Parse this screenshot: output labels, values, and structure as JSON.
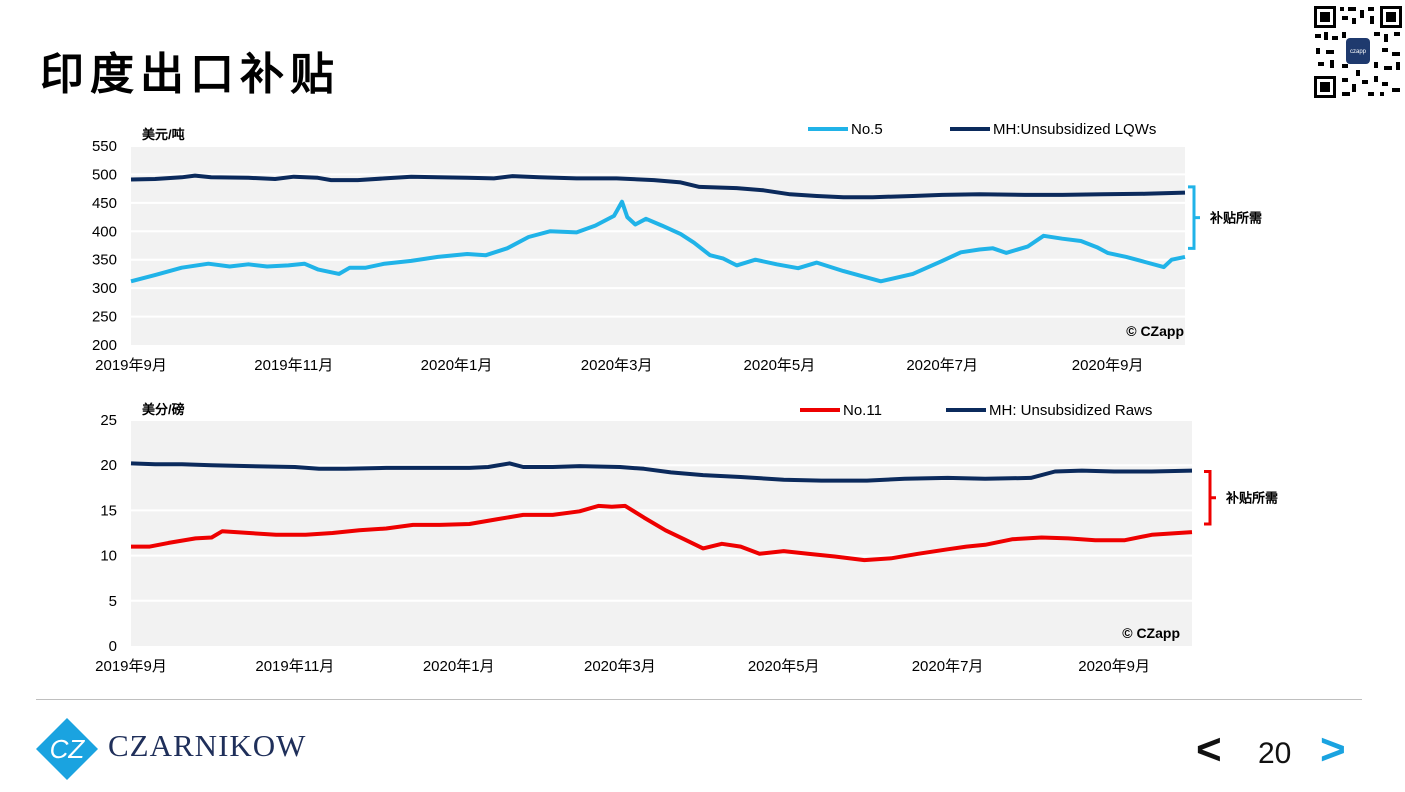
{
  "page": {
    "title": "印度出口补贴",
    "page_number": "20",
    "prev_symbol": "<",
    "next_symbol": ">",
    "brand": "CZARNIKOW",
    "logo_monogram": "CZ"
  },
  "colors": {
    "navy": "#0b2a5c",
    "light_blue": "#20b3e8",
    "red": "#ee0000",
    "plot_bg": "#f2f2f2",
    "brand_blue": "#1aa3e0"
  },
  "chart_data": [
    {
      "type": "line",
      "unit_label": "美元/吨",
      "ylim": [
        200,
        550
      ],
      "yticks": [
        "200",
        "250",
        "300",
        "350",
        "400",
        "450",
        "500",
        "550"
      ],
      "xlim": [
        "2019-09-01",
        "2020-09-30"
      ],
      "xticks": [
        {
          "date": "2019-09-01",
          "label": "2019年9月"
        },
        {
          "date": "2019-11-01",
          "label": "2019年11月"
        },
        {
          "date": "2020-01-01",
          "label": "2020年1月"
        },
        {
          "date": "2020-03-01",
          "label": "2020年3月"
        },
        {
          "date": "2020-05-01",
          "label": "2020年5月"
        },
        {
          "date": "2020-07-01",
          "label": "2020年7月"
        },
        {
          "date": "2020-09-01",
          "label": "2020年9月"
        }
      ],
      "grid": true,
      "legend_position": "top-right",
      "watermark": "© CZapp",
      "bracket_label": "补贴所需",
      "bracket_range": [
        370,
        478
      ],
      "series": [
        {
          "name": "No.5",
          "color": "#20b3e8",
          "points": [
            [
              "2019-09-01",
              312
            ],
            [
              "2019-09-10",
              323
            ],
            [
              "2019-09-20",
              336
            ],
            [
              "2019-09-30",
              343
            ],
            [
              "2019-10-08",
              338
            ],
            [
              "2019-10-15",
              342
            ],
            [
              "2019-10-22",
              338
            ],
            [
              "2019-10-30",
              340
            ],
            [
              "2019-11-05",
              343
            ],
            [
              "2019-11-10",
              333
            ],
            [
              "2019-11-18",
              325
            ],
            [
              "2019-11-22",
              336
            ],
            [
              "2019-11-28",
              336
            ],
            [
              "2019-12-05",
              343
            ],
            [
              "2019-12-15",
              348
            ],
            [
              "2019-12-25",
              355
            ],
            [
              "2020-01-05",
              360
            ],
            [
              "2020-01-12",
              358
            ],
            [
              "2020-01-20",
              370
            ],
            [
              "2020-01-28",
              390
            ],
            [
              "2020-02-05",
              400
            ],
            [
              "2020-02-15",
              398
            ],
            [
              "2020-02-22",
              410
            ],
            [
              "2020-02-29",
              427
            ],
            [
              "2020-03-01",
              435
            ],
            [
              "2020-03-03",
              452
            ],
            [
              "2020-03-05",
              425
            ],
            [
              "2020-03-08",
              412
            ],
            [
              "2020-03-12",
              422
            ],
            [
              "2020-03-18",
              410
            ],
            [
              "2020-03-25",
              395
            ],
            [
              "2020-03-30",
              380
            ],
            [
              "2020-04-05",
              358
            ],
            [
              "2020-04-10",
              352
            ],
            [
              "2020-04-15",
              340
            ],
            [
              "2020-04-22",
              350
            ],
            [
              "2020-04-30",
              342
            ],
            [
              "2020-05-08",
              335
            ],
            [
              "2020-05-15",
              345
            ],
            [
              "2020-05-25",
              330
            ],
            [
              "2020-06-08",
              312
            ],
            [
              "2020-06-20",
              325
            ],
            [
              "2020-07-01",
              348
            ],
            [
              "2020-07-08",
              363
            ],
            [
              "2020-07-15",
              368
            ],
            [
              "2020-07-20",
              370
            ],
            [
              "2020-07-25",
              362
            ],
            [
              "2020-08-02",
              373
            ],
            [
              "2020-08-08",
              392
            ],
            [
              "2020-08-15",
              387
            ],
            [
              "2020-08-22",
              383
            ],
            [
              "2020-08-28",
              372
            ],
            [
              "2020-09-01",
              362
            ],
            [
              "2020-09-08",
              355
            ],
            [
              "2020-09-15",
              346
            ],
            [
              "2020-09-22",
              337
            ],
            [
              "2020-09-25",
              350
            ],
            [
              "2020-09-30",
              355
            ]
          ]
        },
        {
          "name": "MH:Unsubsidized LQWs",
          "color": "#0b2a5c",
          "points": [
            [
              "2019-09-01",
              491
            ],
            [
              "2019-09-10",
              492
            ],
            [
              "2019-09-20",
              495
            ],
            [
              "2019-09-25",
              498
            ],
            [
              "2019-10-01",
              495
            ],
            [
              "2019-10-15",
              494
            ],
            [
              "2019-10-25",
              492
            ],
            [
              "2019-11-01",
              496
            ],
            [
              "2019-11-10",
              494
            ],
            [
              "2019-11-15",
              490
            ],
            [
              "2019-11-25",
              490
            ],
            [
              "2019-12-05",
              493
            ],
            [
              "2019-12-15",
              496
            ],
            [
              "2019-12-25",
              495
            ],
            [
              "2020-01-05",
              494
            ],
            [
              "2020-01-15",
              493
            ],
            [
              "2020-01-22",
              497
            ],
            [
              "2020-02-01",
              495
            ],
            [
              "2020-02-15",
              493
            ],
            [
              "2020-03-01",
              493
            ],
            [
              "2020-03-15",
              490
            ],
            [
              "2020-03-25",
              486
            ],
            [
              "2020-04-01",
              478
            ],
            [
              "2020-04-15",
              476
            ],
            [
              "2020-04-25",
              472
            ],
            [
              "2020-05-05",
              465
            ],
            [
              "2020-05-15",
              462
            ],
            [
              "2020-05-25",
              460
            ],
            [
              "2020-06-05",
              460
            ],
            [
              "2020-06-20",
              462
            ],
            [
              "2020-07-01",
              464
            ],
            [
              "2020-07-15",
              465
            ],
            [
              "2020-08-01",
              464
            ],
            [
              "2020-08-15",
              464
            ],
            [
              "2020-08-30",
              465
            ],
            [
              "2020-09-15",
              466
            ],
            [
              "2020-09-30",
              468
            ]
          ]
        }
      ]
    },
    {
      "type": "line",
      "unit_label": "美分/磅",
      "ylim": [
        0,
        25
      ],
      "yticks": [
        "0",
        "5",
        "10",
        "15",
        "20",
        "25"
      ],
      "xlim": [
        "2019-09-01",
        "2020-09-30"
      ],
      "xticks": [
        {
          "date": "2019-09-01",
          "label": "2019年9月"
        },
        {
          "date": "2019-11-01",
          "label": "2019年11月"
        },
        {
          "date": "2020-01-01",
          "label": "2020年1月"
        },
        {
          "date": "2020-03-01",
          "label": "2020年3月"
        },
        {
          "date": "2020-05-01",
          "label": "2020年5月"
        },
        {
          "date": "2020-07-01",
          "label": "2020年7月"
        },
        {
          "date": "2020-09-01",
          "label": "2020年9月"
        }
      ],
      "grid": true,
      "legend_position": "top-right",
      "watermark": "© CZapp",
      "bracket_label": "补贴所需",
      "bracket_range": [
        13.5,
        19.3
      ],
      "series": [
        {
          "name": "No.11",
          "color": "#ee0000",
          "points": [
            [
              "2019-09-01",
              11.0
            ],
            [
              "2019-09-08",
              11.0
            ],
            [
              "2019-09-15",
              11.4
            ],
            [
              "2019-09-25",
              11.9
            ],
            [
              "2019-10-01",
              12.0
            ],
            [
              "2019-10-05",
              12.7
            ],
            [
              "2019-10-15",
              12.5
            ],
            [
              "2019-10-25",
              12.3
            ],
            [
              "2019-11-05",
              12.3
            ],
            [
              "2019-11-15",
              12.5
            ],
            [
              "2019-11-25",
              12.8
            ],
            [
              "2019-12-05",
              13.0
            ],
            [
              "2019-12-15",
              13.4
            ],
            [
              "2019-12-25",
              13.4
            ],
            [
              "2020-01-05",
              13.5
            ],
            [
              "2020-01-15",
              14.0
            ],
            [
              "2020-01-25",
              14.5
            ],
            [
              "2020-02-05",
              14.5
            ],
            [
              "2020-02-15",
              14.9
            ],
            [
              "2020-02-22",
              15.5
            ],
            [
              "2020-02-27",
              15.4
            ],
            [
              "2020-03-03",
              15.5
            ],
            [
              "2020-03-10",
              14.2
            ],
            [
              "2020-03-18",
              12.8
            ],
            [
              "2020-03-25",
              11.8
            ],
            [
              "2020-04-01",
              10.8
            ],
            [
              "2020-04-08",
              11.3
            ],
            [
              "2020-04-15",
              11.0
            ],
            [
              "2020-04-22",
              10.2
            ],
            [
              "2020-05-01",
              10.5
            ],
            [
              "2020-05-10",
              10.2
            ],
            [
              "2020-05-20",
              9.9
            ],
            [
              "2020-05-31",
              9.5
            ],
            [
              "2020-06-10",
              9.7
            ],
            [
              "2020-06-20",
              10.2
            ],
            [
              "2020-07-01",
              10.7
            ],
            [
              "2020-07-08",
              11.0
            ],
            [
              "2020-07-15",
              11.2
            ],
            [
              "2020-07-25",
              11.8
            ],
            [
              "2020-08-05",
              12.0
            ],
            [
              "2020-08-15",
              11.9
            ],
            [
              "2020-08-25",
              11.7
            ],
            [
              "2020-09-05",
              11.7
            ],
            [
              "2020-09-15",
              12.3
            ],
            [
              "2020-09-30",
              12.6
            ]
          ]
        },
        {
          "name": "MH: Unsubsidized Raws",
          "color": "#0b2a5c",
          "points": [
            [
              "2019-09-01",
              20.2
            ],
            [
              "2019-09-10",
              20.1
            ],
            [
              "2019-09-20",
              20.1
            ],
            [
              "2019-10-01",
              20.0
            ],
            [
              "2019-10-15",
              19.9
            ],
            [
              "2019-11-01",
              19.8
            ],
            [
              "2019-11-10",
              19.6
            ],
            [
              "2019-11-20",
              19.6
            ],
            [
              "2019-12-05",
              19.7
            ],
            [
              "2019-12-20",
              19.7
            ],
            [
              "2020-01-05",
              19.7
            ],
            [
              "2020-01-12",
              19.8
            ],
            [
              "2020-01-20",
              20.2
            ],
            [
              "2020-01-25",
              19.8
            ],
            [
              "2020-02-05",
              19.8
            ],
            [
              "2020-02-15",
              19.9
            ],
            [
              "2020-03-01",
              19.8
            ],
            [
              "2020-03-10",
              19.6
            ],
            [
              "2020-03-20",
              19.2
            ],
            [
              "2020-04-01",
              18.9
            ],
            [
              "2020-04-15",
              18.7
            ],
            [
              "2020-05-01",
              18.4
            ],
            [
              "2020-05-15",
              18.3
            ],
            [
              "2020-06-01",
              18.3
            ],
            [
              "2020-06-15",
              18.5
            ],
            [
              "2020-07-01",
              18.6
            ],
            [
              "2020-07-15",
              18.5
            ],
            [
              "2020-08-01",
              18.6
            ],
            [
              "2020-08-10",
              19.3
            ],
            [
              "2020-08-20",
              19.4
            ],
            [
              "2020-09-01",
              19.3
            ],
            [
              "2020-09-15",
              19.3
            ],
            [
              "2020-09-30",
              19.4
            ]
          ]
        }
      ]
    }
  ]
}
